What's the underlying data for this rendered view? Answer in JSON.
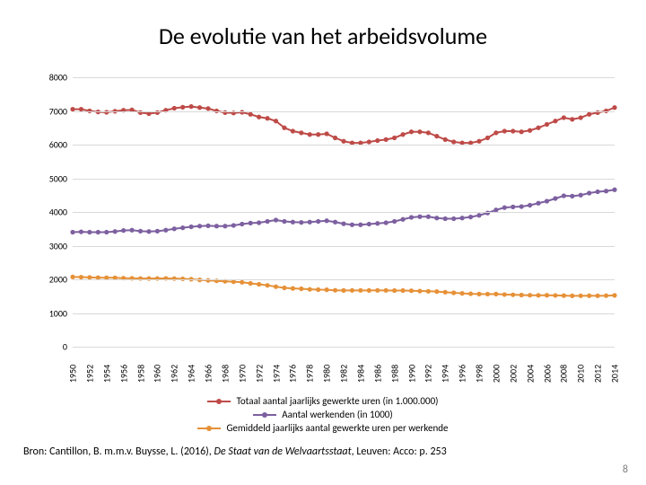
{
  "title": "De evolutie van het arbeidsvolume",
  "chart": {
    "type": "line",
    "background_color": "#ffffff",
    "grid_color": "#d9d9d9",
    "ylim": [
      0,
      8000
    ],
    "ytick_step": 1000,
    "yticks": [
      0,
      1000,
      2000,
      3000,
      4000,
      5000,
      6000,
      7000,
      8000
    ],
    "years": [
      1950,
      1951,
      1952,
      1953,
      1954,
      1955,
      1956,
      1957,
      1958,
      1959,
      1960,
      1961,
      1962,
      1963,
      1964,
      1965,
      1966,
      1967,
      1968,
      1969,
      1970,
      1971,
      1972,
      1973,
      1974,
      1975,
      1976,
      1977,
      1978,
      1979,
      1980,
      1981,
      1982,
      1983,
      1984,
      1985,
      1986,
      1987,
      1988,
      1989,
      1990,
      1991,
      1992,
      1993,
      1994,
      1995,
      1996,
      1997,
      1998,
      1999,
      2000,
      2001,
      2002,
      2003,
      2004,
      2005,
      2006,
      2007,
      2008,
      2009,
      2010,
      2011,
      2012,
      2013,
      2014
    ],
    "xlabels": [
      1950,
      1952,
      1954,
      1956,
      1958,
      1960,
      1962,
      1964,
      1966,
      1968,
      1970,
      1972,
      1974,
      1976,
      1978,
      1980,
      1982,
      1984,
      1986,
      1988,
      1990,
      1992,
      1994,
      1996,
      1998,
      2000,
      2002,
      2004,
      2006,
      2008,
      2010,
      2012,
      2014
    ],
    "title_fontsize": 26,
    "tick_fontsize": 10,
    "legend_fontsize": 11,
    "marker_radius": 2.6,
    "line_width": 2,
    "series": [
      {
        "key": "totaal",
        "label": "Totaal aantal jaarlijks gewerkte uren (in 1.000.000)",
        "color": "#be4b48",
        "values": [
          7050,
          7050,
          7000,
          6970,
          6960,
          6990,
          7020,
          7030,
          6950,
          6920,
          6950,
          7020,
          7080,
          7110,
          7130,
          7100,
          7070,
          7000,
          6950,
          6940,
          6960,
          6900,
          6820,
          6780,
          6700,
          6500,
          6400,
          6350,
          6300,
          6300,
          6320,
          6200,
          6100,
          6050,
          6050,
          6080,
          6120,
          6150,
          6200,
          6300,
          6380,
          6380,
          6350,
          6250,
          6150,
          6080,
          6050,
          6050,
          6100,
          6200,
          6350,
          6400,
          6400,
          6380,
          6420,
          6500,
          6600,
          6700,
          6800,
          6750,
          6800,
          6900,
          6950,
          7000,
          7100
        ]
      },
      {
        "key": "werkenden",
        "label": "Aantal werkenden (in 1000)",
        "color": "#7d60a0",
        "values": [
          3400,
          3410,
          3400,
          3400,
          3400,
          3420,
          3450,
          3460,
          3430,
          3420,
          3430,
          3460,
          3500,
          3530,
          3560,
          3580,
          3590,
          3580,
          3580,
          3600,
          3640,
          3670,
          3680,
          3720,
          3760,
          3720,
          3700,
          3690,
          3700,
          3720,
          3740,
          3700,
          3650,
          3620,
          3620,
          3640,
          3660,
          3680,
          3720,
          3780,
          3840,
          3860,
          3860,
          3820,
          3800,
          3800,
          3820,
          3850,
          3900,
          3970,
          4060,
          4130,
          4150,
          4160,
          4200,
          4260,
          4320,
          4400,
          4480,
          4470,
          4500,
          4560,
          4600,
          4620,
          4660
        ]
      },
      {
        "key": "gemiddeld",
        "label": "Gemiddeld jaarlijks aantal gewerkte uren per werkende",
        "color": "#e69138",
        "values": [
          2070,
          2065,
          2058,
          2050,
          2047,
          2045,
          2035,
          2030,
          2025,
          2023,
          2025,
          2028,
          2022,
          2015,
          2003,
          1983,
          1969,
          1955,
          1941,
          1928,
          1912,
          1880,
          1853,
          1822,
          1782,
          1747,
          1730,
          1720,
          1702,
          1693,
          1690,
          1675,
          1670,
          1671,
          1671,
          1670,
          1672,
          1671,
          1666,
          1666,
          1661,
          1652,
          1645,
          1636,
          1618,
          1600,
          1584,
          1571,
          1564,
          1561,
          1564,
          1549,
          1542,
          1534,
          1528,
          1525,
          1527,
          1522,
          1517,
          1510,
          1511,
          1513,
          1511,
          1515,
          1524
        ]
      }
    ]
  },
  "legend": {
    "items": [
      {
        "label": "Totaal aantal jaarlijks gewerkte uren (in 1.000.000)",
        "color": "#be4b48"
      },
      {
        "label": "Aantal werkenden (in 1000)",
        "color": "#7d60a0"
      },
      {
        "label": "Gemiddeld jaarlijks aantal gewerkte uren per werkende",
        "color": "#e69138"
      }
    ]
  },
  "source": {
    "prefix": "Bron: Cantillon, B. m.m.v. Buysse, L. (2016), ",
    "title": "De Staat van de Welvaartsstaat",
    "suffix": ", Leuven: Acco: p. 253"
  },
  "page_number": "8"
}
